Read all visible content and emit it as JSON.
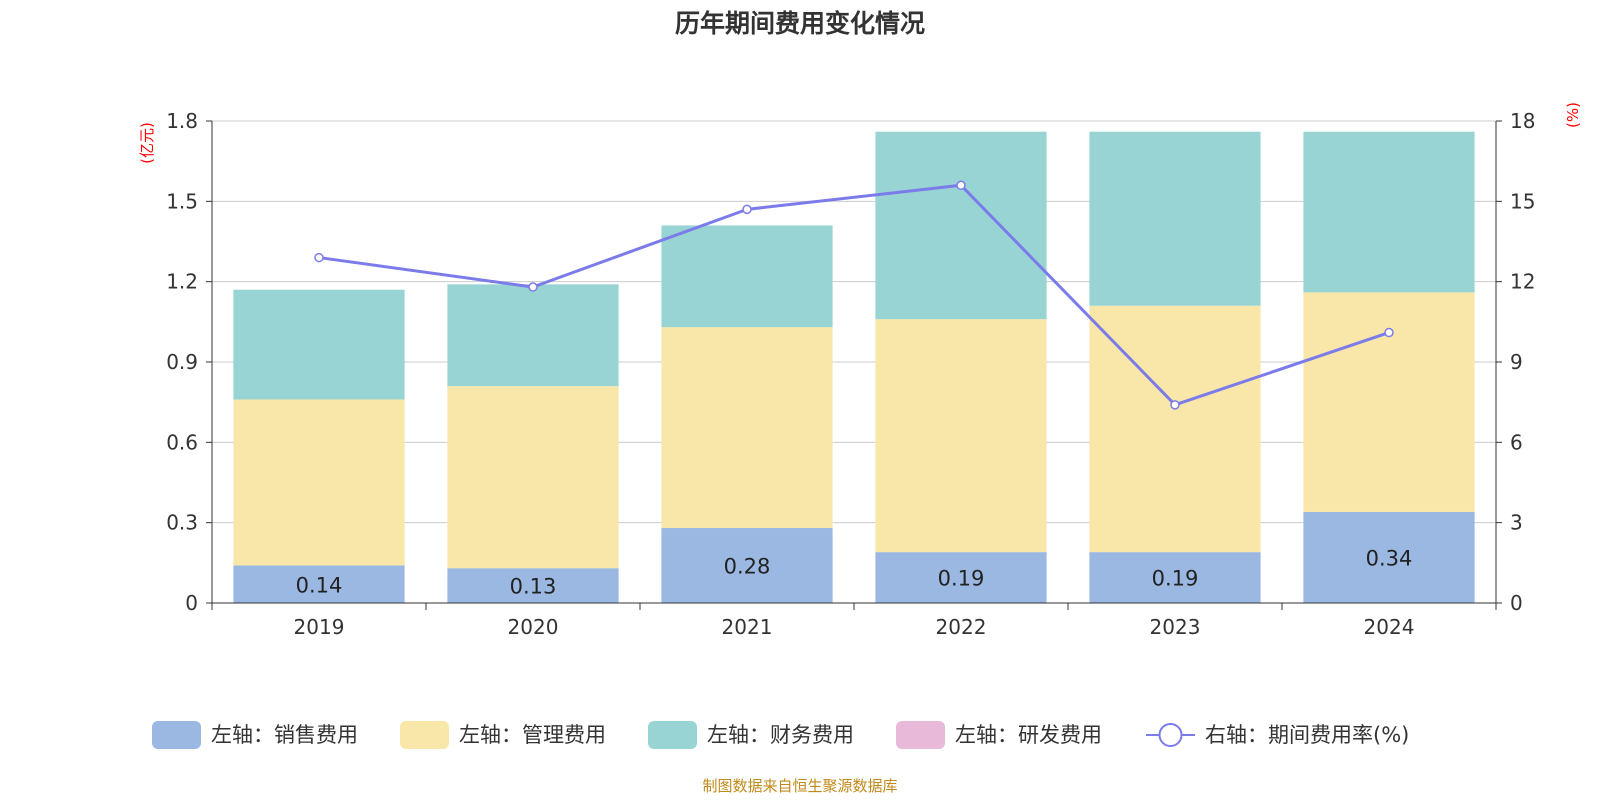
{
  "chart_data": {
    "type": "bar",
    "stacked": true,
    "title": "历年期间费用变化情况",
    "categories": [
      "2019",
      "2020",
      "2021",
      "2022",
      "2023",
      "2024"
    ],
    "left_axis": {
      "unit": "(亿元)",
      "ylim": [
        0,
        1.8
      ],
      "ticks": [
        "0",
        "0.3",
        "0.6",
        "0.9",
        "1.2",
        "1.5",
        "1.8"
      ]
    },
    "right_axis": {
      "unit": "(%)",
      "ylim": [
        0,
        18
      ],
      "ticks": [
        "0",
        "3",
        "6",
        "9",
        "12",
        "15",
        "18"
      ]
    },
    "series": [
      {
        "name": "左轴：销售费用",
        "axis": "left",
        "type": "bar",
        "color": "#9bb8e2",
        "values": [
          0.14,
          0.13,
          0.28,
          0.19,
          0.19,
          0.34
        ],
        "labels": [
          "0.14",
          "0.13",
          "0.28",
          "0.19",
          "0.19",
          "0.34"
        ]
      },
      {
        "name": "左轴：管理费用",
        "axis": "left",
        "type": "bar",
        "color": "#f8e7a8",
        "values": [
          0.62,
          0.68,
          0.75,
          0.87,
          0.92,
          0.82
        ]
      },
      {
        "name": "左轴：财务费用",
        "axis": "left",
        "type": "bar",
        "color": "#98d4d4",
        "values": [
          0.41,
          0.38,
          0.38,
          0.7,
          0.65,
          0.6
        ]
      },
      {
        "name": "左轴：研发费用",
        "axis": "left",
        "type": "bar",
        "color": "#e8b9d9",
        "values": [
          0,
          0,
          0,
          0,
          0,
          0
        ]
      },
      {
        "name": "右轴：期间费用率(%)",
        "axis": "right",
        "type": "line",
        "color": "#7b7bea",
        "values": [
          12.9,
          11.8,
          14.7,
          15.6,
          7.4,
          10.1
        ]
      }
    ],
    "grid": true,
    "legend": "bottom",
    "source": "制图数据来自恒生聚源数据库"
  }
}
